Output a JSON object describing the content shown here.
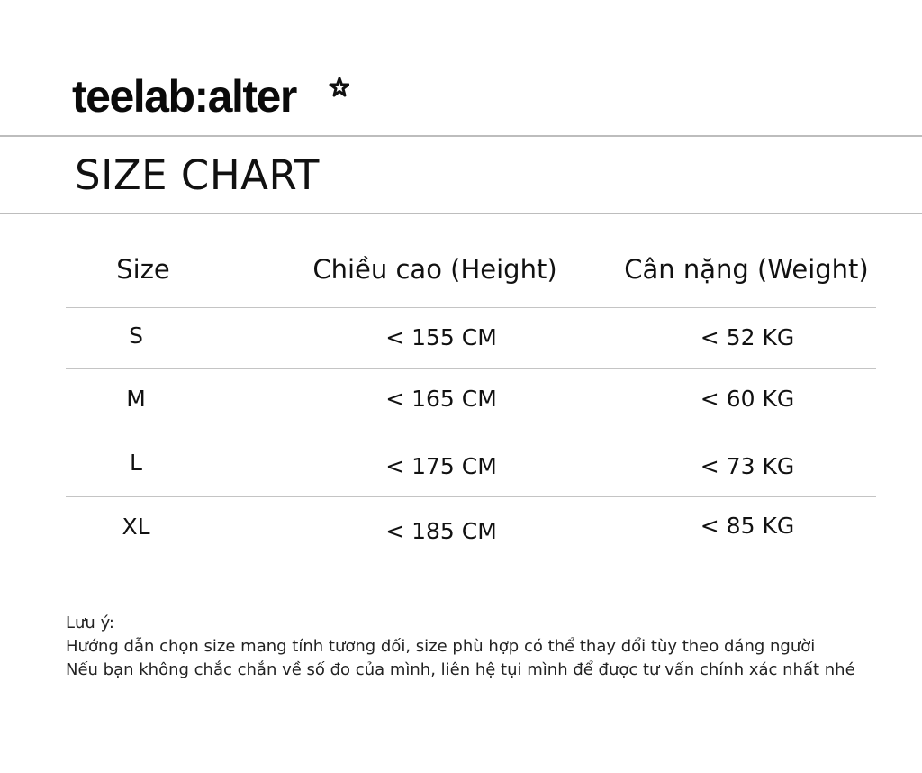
{
  "brand": {
    "logo_text": "teelab:alter"
  },
  "title": "SIZE CHART",
  "table": {
    "headers": [
      "Size",
      "Chiều cao (Height)",
      "Cân nặng (Weight)"
    ],
    "rows": [
      [
        "S",
        "< 155 CM",
        "< 52 KG"
      ],
      [
        "M",
        "< 165 CM",
        "< 60 KG"
      ],
      [
        "L",
        "< 175 CM",
        "< 73 KG"
      ],
      [
        "XL",
        "< 185 CM",
        "< 85 KG"
      ]
    ]
  },
  "notes": {
    "label": "Lưu ý:",
    "lines": [
      "Hướng dẫn chọn size mang tính tương đối, size phù hợp có thể thay đổi tùy theo dáng người",
      "Nếu bạn không chắc chắn về số đo của mình, liên hệ tụi mình để được tư vấn chính xác nhất nhé"
    ]
  }
}
